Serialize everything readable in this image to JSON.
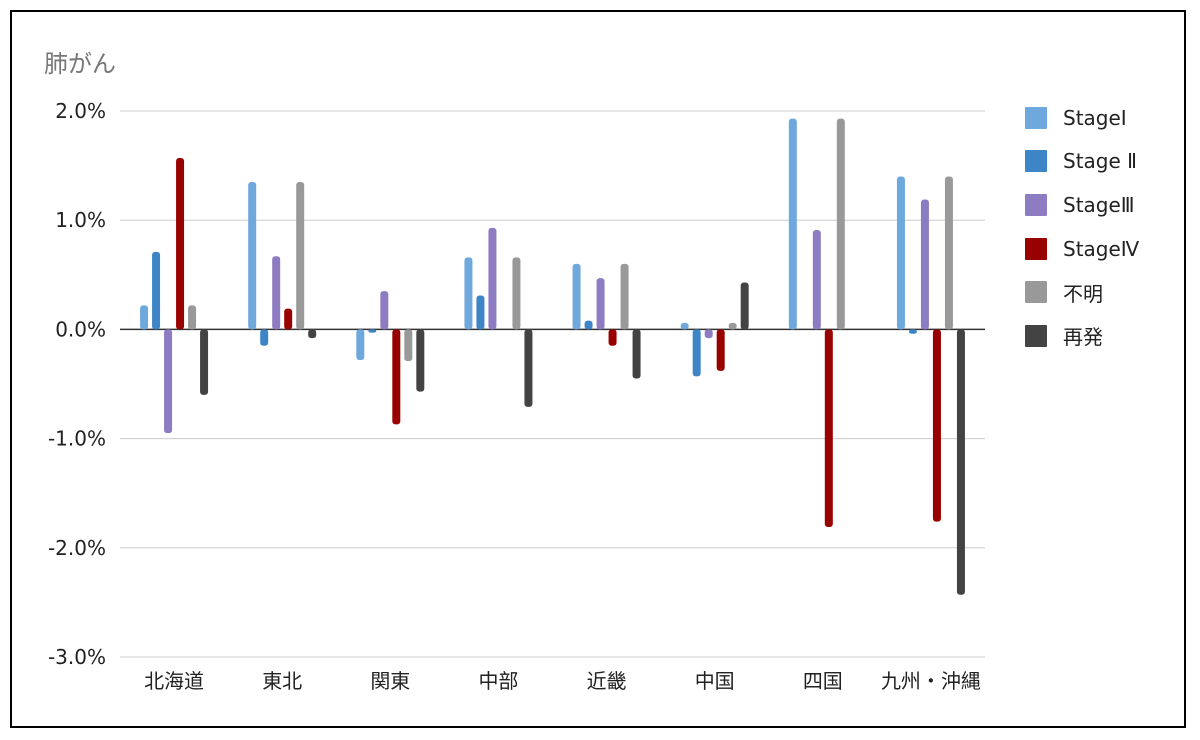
{
  "chart_data": {
    "type": "bar",
    "title": "肺がん",
    "categories": [
      "北海道",
      "東北",
      "関東",
      "中部",
      "近畿",
      "中国",
      "四国",
      "九州・沖縄"
    ],
    "y_ticks": [
      "2.0%",
      "1.0%",
      "0.0%",
      "-1.0%",
      "-2.0%",
      "-3.0%"
    ],
    "ylim": [
      -3.0,
      2.0
    ],
    "y_unit": "%",
    "grid": true,
    "legend_position": "right",
    "series": [
      {
        "name": "StageⅠ",
        "color": "#6fa8dc",
        "values": [
          0.22,
          1.35,
          -0.28,
          0.66,
          0.6,
          0.06,
          1.93,
          1.4
        ]
      },
      {
        "name": "Stage Ⅱ",
        "color": "#3d85c6",
        "values": [
          0.71,
          -0.15,
          -0.03,
          0.31,
          0.08,
          -0.43,
          0.0,
          -0.04
        ]
      },
      {
        "name": "StageⅢ",
        "color": "#8e7cc3",
        "values": [
          -0.95,
          0.67,
          0.35,
          0.93,
          0.47,
          -0.08,
          0.91,
          1.19
        ]
      },
      {
        "name": "StageⅣ",
        "color": "#990000",
        "values": [
          1.57,
          0.19,
          -0.87,
          0.0,
          -0.15,
          -0.38,
          -1.81,
          -1.76
        ]
      },
      {
        "name": "不明",
        "color": "#999999",
        "values": [
          0.22,
          1.35,
          -0.29,
          0.66,
          0.6,
          0.06,
          1.93,
          1.4
        ]
      },
      {
        "name": "再発",
        "color": "#434343",
        "values": [
          -0.6,
          -0.08,
          -0.57,
          -0.71,
          -0.45,
          0.43,
          0.0,
          -2.43
        ]
      }
    ]
  }
}
